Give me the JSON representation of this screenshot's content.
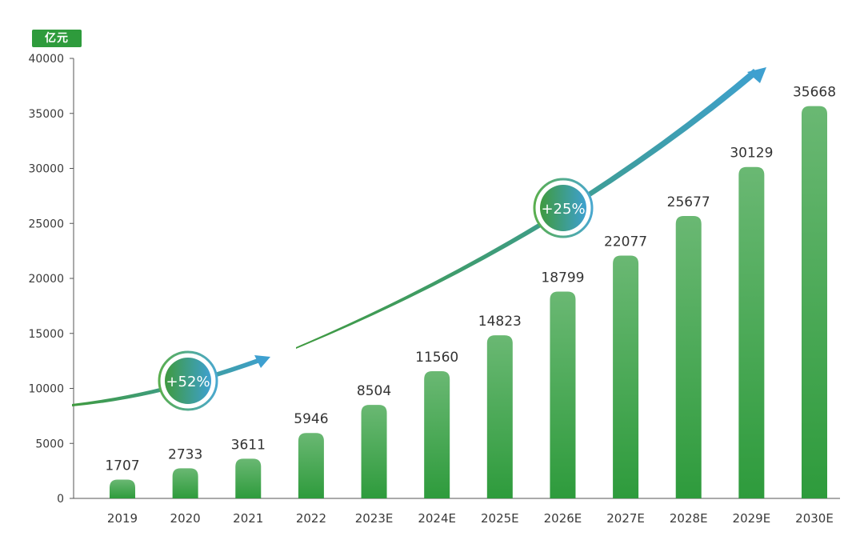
{
  "unit_label": "亿元",
  "chart_data": {
    "type": "bar",
    "categories": [
      "2019",
      "2020",
      "2021",
      "2022",
      "2023E",
      "2024E",
      "2025E",
      "2026E",
      "2027E",
      "2028E",
      "2029E",
      "2030E"
    ],
    "values": [
      1707,
      2733,
      3611,
      5946,
      8504,
      11560,
      14823,
      18799,
      22077,
      25677,
      30129,
      35668
    ],
    "ylim": [
      0,
      40000
    ],
    "yticks": [
      0,
      5000,
      10000,
      15000,
      20000,
      25000,
      30000,
      35000,
      40000
    ],
    "ylabel": "亿元",
    "grid": false,
    "annotations": [
      {
        "text": "+52%"
      },
      {
        "text": "+25%"
      }
    ],
    "colors": {
      "bar_top": "#6ab873",
      "bar_bottom": "#2e9b3c",
      "arrow_start": "#3f9a3f",
      "arrow_end": "#3ea0d0",
      "unit_badge": "#2e9b3c"
    }
  }
}
